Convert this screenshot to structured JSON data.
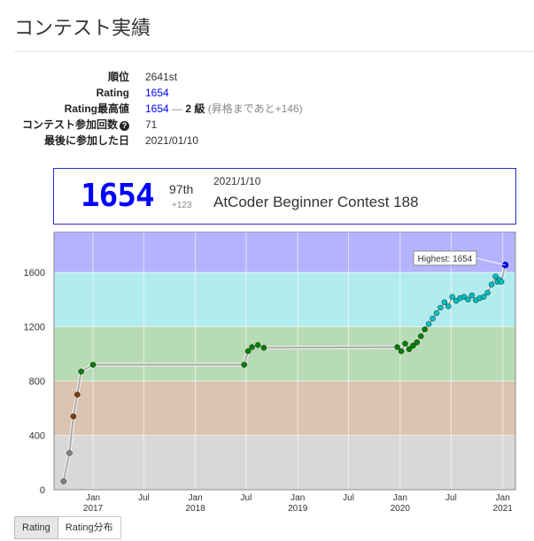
{
  "page": {
    "title": "コンテスト実績"
  },
  "profile": {
    "rank_label": "順位",
    "rank_value": "2641st",
    "rating_label": "Rating",
    "rating_value": "1654",
    "highest_label": "Rating最高値",
    "highest_value": "1654",
    "highest_dash": " — ",
    "highest_grade": "2 級",
    "highest_note": " (昇格まであと+146)",
    "contests_label": "コンテスト参加回数",
    "contests_help_icon": "question-circle-icon",
    "contests_value": "71",
    "last_label": "最後に参加した日",
    "last_value": "2021/01/10"
  },
  "latest_contest": {
    "rating": "1654",
    "rank": "97th",
    "diff": "+123",
    "date": "2021/1/10",
    "name": "AtCoder Beginner Contest 188"
  },
  "tabs": [
    {
      "label": "Rating",
      "active": true
    },
    {
      "label": "Rating分布",
      "active": false
    }
  ],
  "chart_data": {
    "type": "line",
    "x_range": [
      "2016-08-15",
      "2021-02-15"
    ],
    "ylim": [
      0,
      1900
    ],
    "y_ticks": [
      0,
      400,
      800,
      1200,
      1600
    ],
    "x_ticks": [
      {
        "date": "2017-01-01",
        "label": "Jan",
        "year": "2017"
      },
      {
        "date": "2017-07-01",
        "label": "Jul",
        "year": ""
      },
      {
        "date": "2018-01-01",
        "label": "Jan",
        "year": "2018"
      },
      {
        "date": "2018-07-01",
        "label": "Jul",
        "year": ""
      },
      {
        "date": "2019-01-01",
        "label": "Jan",
        "year": "2019"
      },
      {
        "date": "2019-07-01",
        "label": "Jul",
        "year": ""
      },
      {
        "date": "2020-01-01",
        "label": "Jan",
        "year": "2020"
      },
      {
        "date": "2020-07-01",
        "label": "Jul",
        "year": ""
      },
      {
        "date": "2021-01-01",
        "label": "Jan",
        "year": "2021"
      }
    ],
    "bands": [
      {
        "from": 0,
        "to": 400,
        "color": "#d8d8d8"
      },
      {
        "from": 400,
        "to": 800,
        "color": "#dcc4b2"
      },
      {
        "from": 800,
        "to": 1200,
        "color": "#b7dbb4"
      },
      {
        "from": 1200,
        "to": 1600,
        "color": "#b3ecee"
      },
      {
        "from": 1600,
        "to": 1900,
        "color": "#b3b3ff"
      }
    ],
    "tooltip": "Highest: 1654",
    "points": [
      [
        "2016-09-18",
        62
      ],
      [
        "2016-10-09",
        270
      ],
      [
        "2016-10-23",
        540
      ],
      [
        "2016-11-06",
        700
      ],
      [
        "2016-11-20",
        870
      ],
      [
        "2017-01-01",
        920
      ],
      [
        "2018-06-24",
        920
      ],
      [
        "2018-07-08",
        1020
      ],
      [
        "2018-07-22",
        1050
      ],
      [
        "2018-08-12",
        1065
      ],
      [
        "2018-09-02",
        1045
      ],
      [
        "2019-12-22",
        1050
      ],
      [
        "2020-01-05",
        1020
      ],
      [
        "2020-01-19",
        1075
      ],
      [
        "2020-02-02",
        1035
      ],
      [
        "2020-02-16",
        1060
      ],
      [
        "2020-03-01",
        1085
      ],
      [
        "2020-03-15",
        1130
      ],
      [
        "2020-03-29",
        1180
      ],
      [
        "2020-04-12",
        1220
      ],
      [
        "2020-04-26",
        1260
      ],
      [
        "2020-05-10",
        1300
      ],
      [
        "2020-05-24",
        1340
      ],
      [
        "2020-06-07",
        1380
      ],
      [
        "2020-06-21",
        1350
      ],
      [
        "2020-07-05",
        1420
      ],
      [
        "2020-07-19",
        1390
      ],
      [
        "2020-08-02",
        1410
      ],
      [
        "2020-08-16",
        1420
      ],
      [
        "2020-08-30",
        1400
      ],
      [
        "2020-09-13",
        1430
      ],
      [
        "2020-09-27",
        1395
      ],
      [
        "2020-10-11",
        1410
      ],
      [
        "2020-10-25",
        1420
      ],
      [
        "2020-11-08",
        1450
      ],
      [
        "2020-11-22",
        1510
      ],
      [
        "2020-12-06",
        1570
      ],
      [
        "2020-12-13",
        1530
      ],
      [
        "2020-12-20",
        1545
      ],
      [
        "2020-12-27",
        1531
      ],
      [
        "2021-01-10",
        1654
      ]
    ],
    "highest_index": 40
  }
}
